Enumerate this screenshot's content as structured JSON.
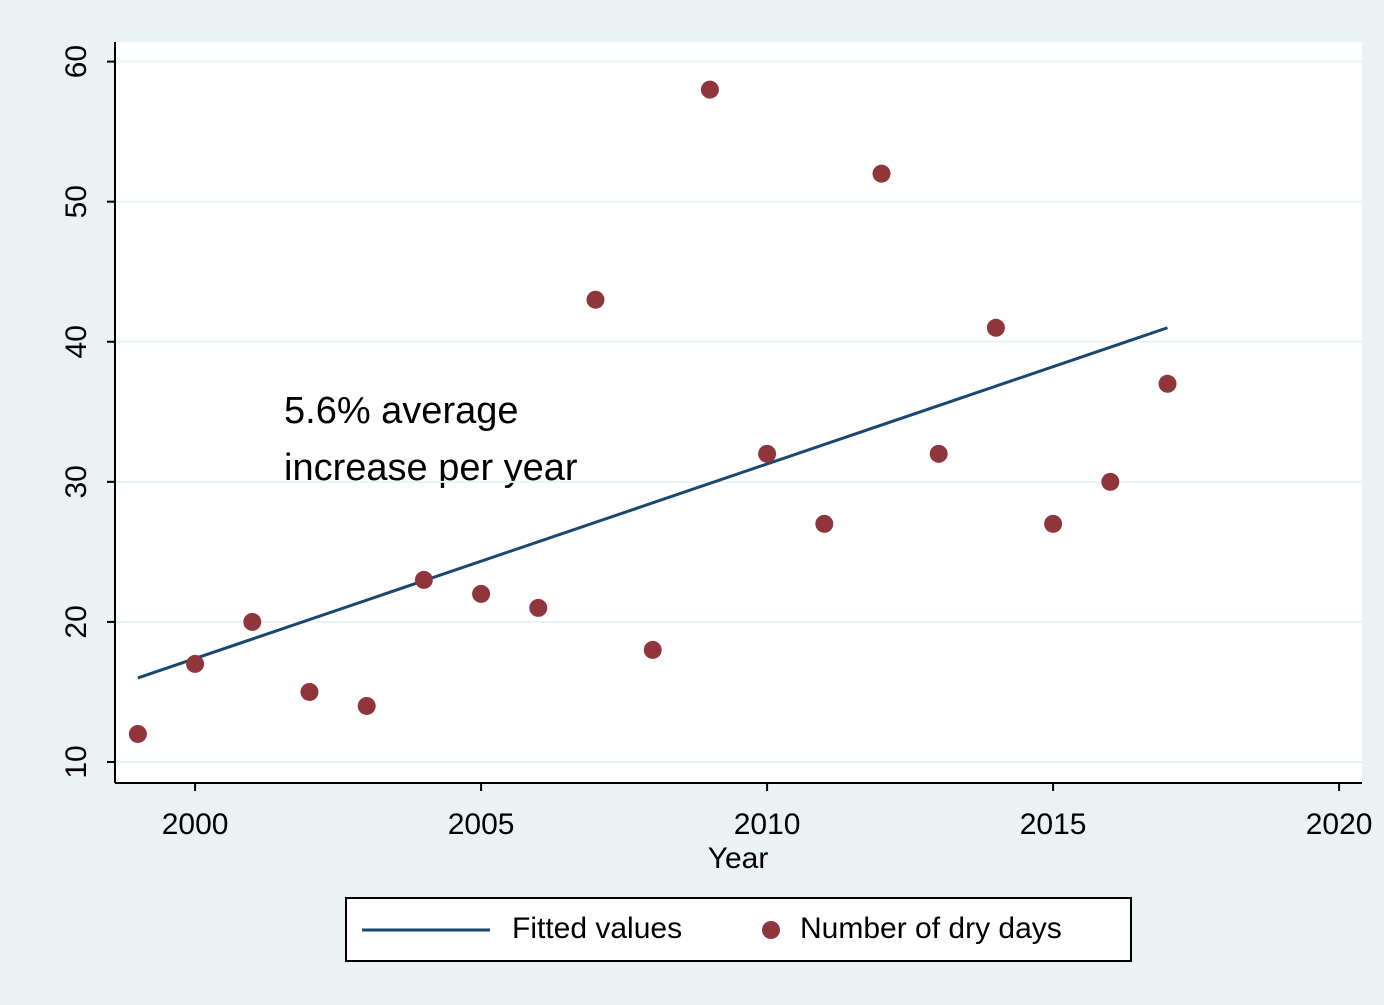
{
  "chart_data": {
    "type": "scatter",
    "xlabel": "Year",
    "annotation": [
      "5.6% average",
      "increase per year"
    ],
    "series": [
      {
        "name": "Fitted values",
        "type": "line",
        "color": "#1a476f",
        "x": [
          1999,
          2017
        ],
        "values": [
          16,
          41
        ]
      },
      {
        "name": "Number of dry days",
        "type": "scatter",
        "color": "#90353b",
        "x": [
          1999,
          2000,
          2001,
          2002,
          2003,
          2004,
          2005,
          2006,
          2007,
          2008,
          2009,
          2010,
          2011,
          2012,
          2013,
          2014,
          2015,
          2016,
          2017
        ],
        "values": [
          12,
          17,
          20,
          15,
          14,
          23,
          22,
          21,
          43,
          18,
          58,
          32,
          27,
          52,
          32,
          41,
          27,
          30,
          37
        ]
      }
    ],
    "xlim": [
      1998.6,
      2020.4
    ],
    "xticks": [
      2000,
      2005,
      2010,
      2015,
      2020
    ],
    "ylim": [
      8.5,
      61.4
    ],
    "yticks": [
      10,
      20,
      30,
      40,
      50,
      60
    ],
    "grid": true,
    "legend": "bottom"
  }
}
